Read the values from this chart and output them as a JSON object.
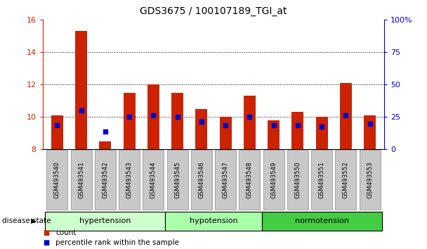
{
  "title": "GDS3675 / 100107189_TGI_at",
  "samples": [
    "GSM493540",
    "GSM493541",
    "GSM493542",
    "GSM493543",
    "GSM493544",
    "GSM493545",
    "GSM493546",
    "GSM493547",
    "GSM493548",
    "GSM493549",
    "GSM493550",
    "GSM493551",
    "GSM493552",
    "GSM493553"
  ],
  "count_values": [
    10.1,
    15.3,
    8.5,
    11.5,
    12.0,
    11.5,
    10.5,
    10.0,
    11.3,
    9.8,
    10.3,
    10.0,
    12.1,
    10.1
  ],
  "percentile_values": [
    9.5,
    10.4,
    9.1,
    10.0,
    10.1,
    10.0,
    9.7,
    9.5,
    10.0,
    9.5,
    9.5,
    9.4,
    10.1,
    9.6
  ],
  "ylim": [
    8,
    16
  ],
  "y2lim": [
    0,
    100
  ],
  "yticks": [
    8,
    10,
    12,
    14,
    16
  ],
  "y2ticks": [
    0,
    25,
    50,
    75,
    100
  ],
  "bar_color": "#cc2200",
  "dot_color": "#0000cc",
  "background_color": "#ffffff",
  "groups": [
    {
      "label": "hypertension",
      "start": 0,
      "end": 5,
      "color": "#ccffcc"
    },
    {
      "label": "hypotension",
      "start": 5,
      "end": 9,
      "color": "#aaffaa"
    },
    {
      "label": "normotension",
      "start": 9,
      "end": 14,
      "color": "#44cc44"
    }
  ],
  "ylabel_left_color": "#cc2200",
  "ylabel_right_color": "#0000cc",
  "legend_items": [
    "count",
    "percentile rank within the sample"
  ],
  "disease_state_label": "disease state"
}
